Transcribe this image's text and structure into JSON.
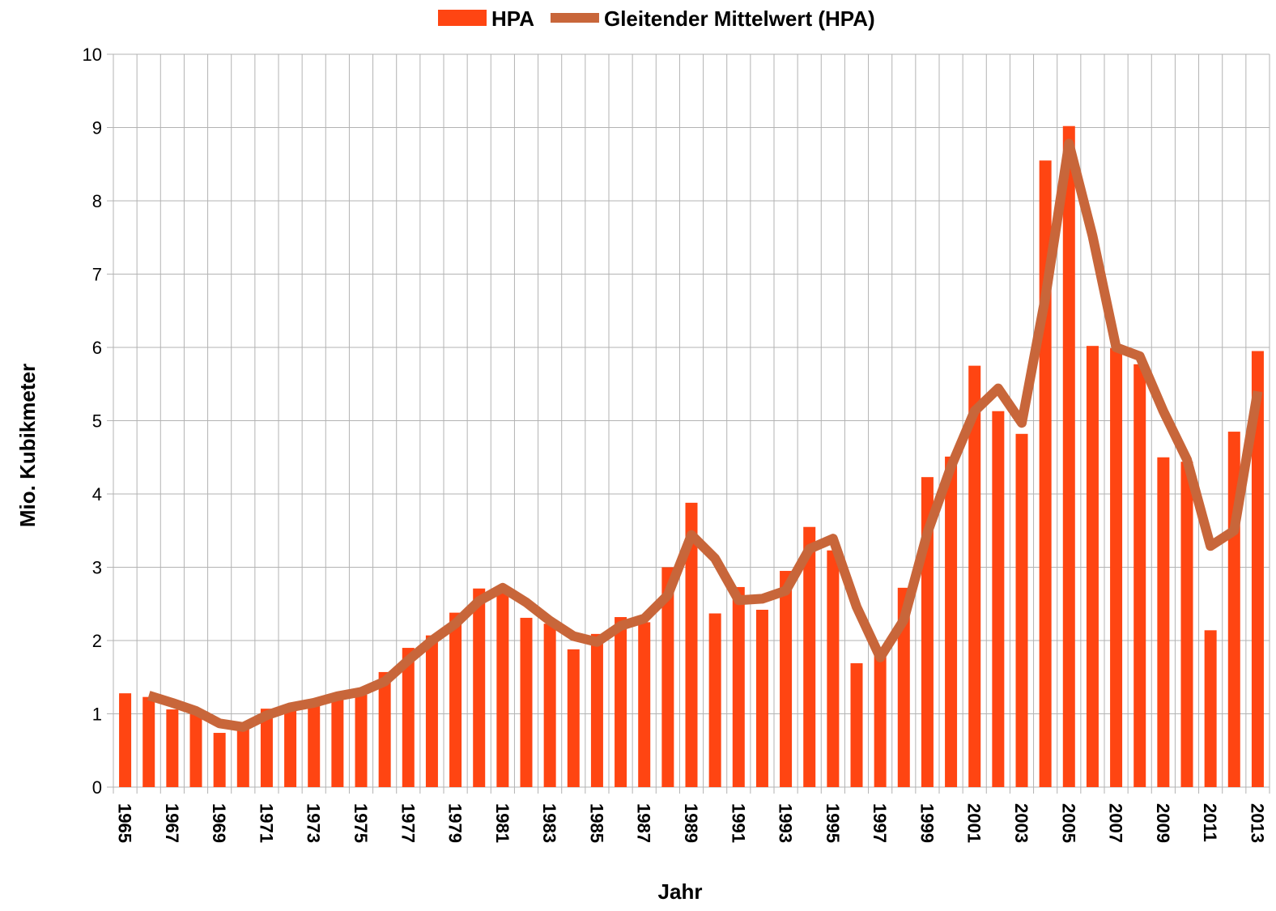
{
  "chart_data": {
    "type": "bar_line",
    "categories": [
      "1965",
      null,
      "1967",
      null,
      "1969",
      null,
      "1971",
      null,
      "1973",
      null,
      "1975",
      null,
      "1977",
      null,
      "1979",
      null,
      "1981",
      null,
      "1983",
      null,
      "1985",
      null,
      "1987",
      null,
      "1989",
      null,
      "1991",
      null,
      "1993",
      null,
      "1995",
      null,
      "1997",
      null,
      "1999",
      null,
      "2001",
      null,
      "2003",
      null,
      "2005",
      null,
      "2007",
      null,
      "2009",
      null,
      "2011",
      null,
      "2013"
    ],
    "series": [
      {
        "name": "HPA",
        "color": "#ff4512",
        "type": "bar",
        "values": [
          1.28,
          1.23,
          1.06,
          1.0,
          0.74,
          0.82,
          1.07,
          1.1,
          1.15,
          1.26,
          1.26,
          1.57,
          1.9,
          2.07,
          2.38,
          2.71,
          2.67,
          2.31,
          2.23,
          1.88,
          2.09,
          2.32,
          2.25,
          3.0,
          3.88,
          2.37,
          2.73,
          2.42,
          2.95,
          3.55,
          3.23,
          1.69,
          1.85,
          2.72,
          4.23,
          4.51,
          5.75,
          5.13,
          4.82,
          8.55,
          9.02,
          6.02,
          5.99,
          5.77,
          4.5,
          4.44,
          2.14,
          4.85,
          5.95
        ]
      },
      {
        "name": "Gleitender Mittelwert (HPA)",
        "color": "#c8663a",
        "type": "line",
        "values": [
          null,
          1.25,
          1.15,
          1.04,
          0.87,
          0.82,
          0.98,
          1.09,
          1.15,
          1.24,
          1.3,
          1.44,
          1.73,
          2.0,
          2.23,
          2.54,
          2.72,
          2.52,
          2.27,
          2.06,
          1.98,
          2.2,
          2.3,
          2.62,
          3.44,
          3.12,
          2.55,
          2.57,
          2.68,
          3.25,
          3.39,
          2.46,
          1.77,
          2.28,
          3.47,
          4.37,
          5.13,
          5.44,
          4.97,
          6.68,
          8.78,
          7.52,
          6.0,
          5.88,
          5.13,
          4.47,
          3.29,
          3.5,
          5.4
        ]
      }
    ],
    "x_label": "Jahr",
    "y_label": "Mio. Kubikmeter",
    "ylim": [
      0,
      10
    ],
    "yticks": [
      0,
      1,
      2,
      3,
      4,
      5,
      6,
      7,
      8,
      9,
      10
    ],
    "grid": true,
    "legend": "top"
  }
}
